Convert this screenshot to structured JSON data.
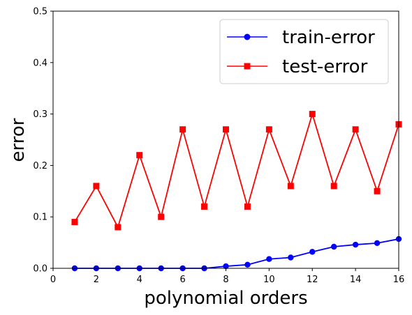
{
  "chart_data": {
    "type": "line",
    "xlabel": "polynomial orders",
    "ylabel": "error",
    "xlim": [
      0,
      16
    ],
    "ylim": [
      0,
      0.5
    ],
    "x_ticks": [
      0,
      2,
      4,
      6,
      8,
      10,
      12,
      14,
      16
    ],
    "y_ticks": [
      0.0,
      0.1,
      0.2,
      0.3,
      0.4,
      0.5
    ],
    "x_tick_labels": [
      "0",
      "2",
      "4",
      "6",
      "8",
      "10",
      "12",
      "14",
      "16"
    ],
    "y_tick_labels": [
      "0.0",
      "0.1",
      "0.2",
      "0.3",
      "0.4",
      "0.5"
    ],
    "grid": false,
    "legend_position": "top-right",
    "x": [
      1,
      2,
      3,
      4,
      5,
      6,
      7,
      8,
      9,
      10,
      11,
      12,
      13,
      14,
      15,
      16
    ],
    "series": [
      {
        "name": "train-error",
        "color": "#0000ff",
        "marker": "circle",
        "values": [
          0.0,
          0.0,
          0.0,
          0.0,
          0.0,
          0.0,
          0.0,
          0.004,
          0.007,
          0.018,
          0.021,
          0.032,
          0.042,
          0.046,
          0.049,
          0.057
        ]
      },
      {
        "name": "test-error",
        "color": "#ff0000",
        "marker": "square",
        "values": [
          0.09,
          0.16,
          0.08,
          0.22,
          0.1,
          0.27,
          0.12,
          0.27,
          0.12,
          0.27,
          0.16,
          0.3,
          0.16,
          0.27,
          0.15,
          0.28
        ]
      }
    ]
  }
}
